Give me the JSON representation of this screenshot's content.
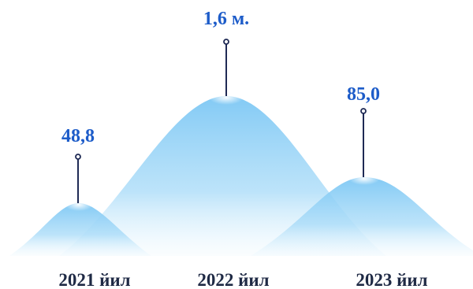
{
  "items": [
    {
      "value": "48,8",
      "year": "2021 йил"
    },
    {
      "value": "1,6 м.",
      "year": "2022 йил"
    },
    {
      "value": "85,0",
      "year": "2023 йил"
    }
  ]
}
